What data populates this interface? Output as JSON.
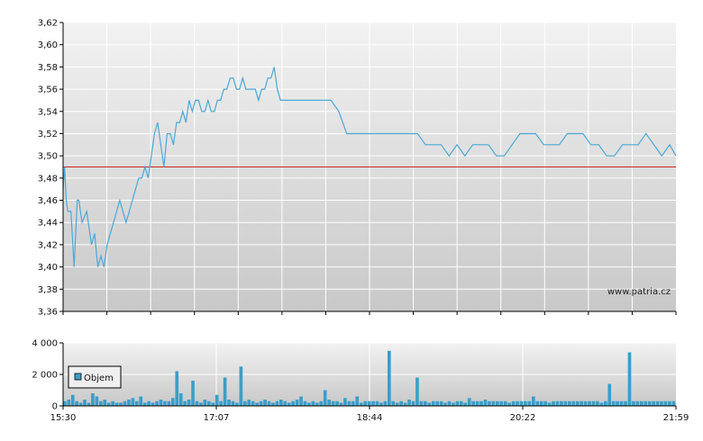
{
  "watermark": "www.patria.cz",
  "colors": {
    "price_line": "#4aa9d6",
    "reference_line": "#cc2222",
    "volume_bar": "#3a9ec9",
    "grid": "#ffffff",
    "axis": "#000000",
    "bg_top": "#f2f2f2",
    "bg_bottom": "#c8c8c8"
  },
  "chart_data": [
    {
      "type": "line",
      "name": "price",
      "ylim": [
        3.36,
        3.62
      ],
      "y_ticks": [
        "3,36",
        "3,38",
        "3,40",
        "3,42",
        "3,44",
        "3,46",
        "3,48",
        "3,50",
        "3,52",
        "3,54",
        "3,56",
        "3,58",
        "3,60",
        "3,62"
      ],
      "x_ticks": [
        "15:30",
        "17:07",
        "18:44",
        "20:22",
        "21:59"
      ],
      "reference_value": 3.49,
      "grid": true,
      "watermark": "www.patria.cz",
      "series": [
        {
          "x": [
            "15:30",
            "15:31",
            "15:32",
            "15:33",
            "15:35",
            "15:37",
            "15:39",
            "15:40",
            "15:42",
            "15:45",
            "15:48",
            "15:50",
            "15:52",
            "15:54",
            "15:56",
            "15:58",
            "16:00",
            "16:02",
            "16:04",
            "16:06",
            "16:08",
            "16:10",
            "16:12",
            "16:14",
            "16:16",
            "16:18",
            "16:20",
            "16:22",
            "16:24",
            "16:26",
            "16:28",
            "16:30",
            "16:32",
            "16:34",
            "16:36",
            "16:38",
            "16:40",
            "16:42",
            "16:44",
            "16:46",
            "16:48",
            "16:50",
            "16:52",
            "16:54",
            "16:56",
            "16:58",
            "17:00",
            "17:02",
            "17:04",
            "17:06",
            "17:08",
            "17:10",
            "17:12",
            "17:14",
            "17:16",
            "17:18",
            "17:20",
            "17:22",
            "17:24",
            "17:26",
            "17:28",
            "17:30",
            "17:32",
            "17:34",
            "17:36",
            "17:38",
            "17:40",
            "17:42",
            "17:44",
            "17:46",
            "17:48",
            "17:52",
            "17:56",
            "18:00",
            "18:05",
            "18:10",
            "18:15",
            "18:20",
            "18:25",
            "18:30",
            "18:35",
            "18:40",
            "18:45",
            "18:50",
            "18:55",
            "19:00",
            "19:05",
            "19:10",
            "19:15",
            "19:20",
            "19:25",
            "19:30",
            "19:35",
            "19:40",
            "19:45",
            "19:50",
            "19:55",
            "20:00",
            "20:05",
            "20:10",
            "20:15",
            "20:20",
            "20:25",
            "20:30",
            "20:35",
            "20:40",
            "20:45",
            "20:50",
            "20:55",
            "21:00",
            "21:05",
            "21:10",
            "21:15",
            "21:20",
            "21:25",
            "21:30",
            "21:35",
            "21:40",
            "21:45",
            "21:50",
            "21:55",
            "21:59"
          ],
          "y": [
            3.47,
            3.49,
            3.46,
            3.45,
            3.45,
            3.4,
            3.46,
            3.46,
            3.44,
            3.45,
            3.42,
            3.43,
            3.4,
            3.41,
            3.4,
            3.42,
            3.43,
            3.44,
            3.45,
            3.46,
            3.45,
            3.44,
            3.45,
            3.46,
            3.47,
            3.48,
            3.48,
            3.49,
            3.48,
            3.5,
            3.52,
            3.53,
            3.51,
            3.49,
            3.52,
            3.52,
            3.51,
            3.53,
            3.53,
            3.54,
            3.53,
            3.55,
            3.54,
            3.55,
            3.55,
            3.54,
            3.54,
            3.55,
            3.54,
            3.54,
            3.55,
            3.55,
            3.56,
            3.56,
            3.57,
            3.57,
            3.56,
            3.56,
            3.57,
            3.56,
            3.56,
            3.56,
            3.56,
            3.55,
            3.56,
            3.56,
            3.57,
            3.57,
            3.58,
            3.56,
            3.55,
            3.55,
            3.55,
            3.55,
            3.55,
            3.55,
            3.55,
            3.55,
            3.54,
            3.52,
            3.52,
            3.52,
            3.52,
            3.52,
            3.52,
            3.52,
            3.52,
            3.52,
            3.52,
            3.51,
            3.51,
            3.51,
            3.5,
            3.51,
            3.5,
            3.51,
            3.51,
            3.51,
            3.5,
            3.5,
            3.51,
            3.52,
            3.52,
            3.52,
            3.51,
            3.51,
            3.51,
            3.52,
            3.52,
            3.52,
            3.51,
            3.51,
            3.5,
            3.5,
            3.51,
            3.51,
            3.51,
            3.52,
            3.51,
            3.5,
            3.51,
            3.5
          ]
        }
      ]
    },
    {
      "type": "bar",
      "name": "volume",
      "ylim": [
        0,
        4000
      ],
      "y_ticks": [
        "0",
        "2 000",
        "4 000"
      ],
      "x_ticks": [
        "15:30",
        "17:07",
        "18:44",
        "20:22",
        "21:59"
      ],
      "legend": "Objem",
      "grid": true,
      "series": [
        {
          "name": "Objem",
          "values": [
            300,
            400,
            700,
            300,
            200,
            400,
            200,
            800,
            600,
            300,
            400,
            200,
            300,
            200,
            200,
            300,
            400,
            500,
            300,
            600,
            200,
            300,
            200,
            300,
            400,
            300,
            300,
            500,
            2200,
            800,
            300,
            400,
            1600,
            300,
            200,
            400,
            300,
            200,
            700,
            300,
            1800,
            400,
            300,
            200,
            2500,
            300,
            400,
            300,
            200,
            300,
            400,
            300,
            200,
            300,
            400,
            300,
            200,
            300,
            400,
            600,
            300,
            200,
            300,
            200,
            300,
            1000,
            400,
            300,
            300,
            200,
            500,
            300,
            300,
            600,
            200,
            300,
            300,
            300,
            300,
            200,
            300,
            3500,
            300,
            200,
            300,
            200,
            400,
            300,
            1800,
            300,
            300,
            200,
            300,
            300,
            300,
            200,
            300,
            200,
            300,
            300,
            200,
            500,
            300,
            300,
            300,
            400,
            300,
            300,
            300,
            300,
            300,
            200,
            300,
            300,
            300,
            300,
            300,
            600,
            300,
            300,
            300,
            200,
            300,
            300,
            300,
            300,
            300,
            300,
            300,
            300,
            300,
            300,
            300,
            300,
            200,
            300,
            1400,
            300,
            300,
            300,
            300,
            3400,
            300,
            300,
            300,
            300,
            300,
            300,
            300,
            300,
            300,
            300,
            300
          ]
        }
      ]
    }
  ]
}
